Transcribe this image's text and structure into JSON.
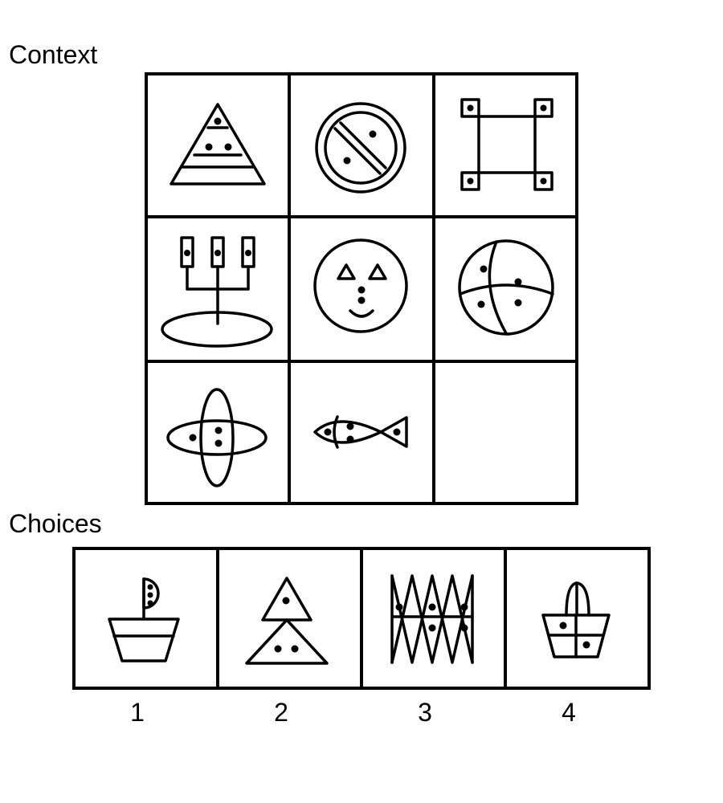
{
  "context": {
    "label": "Context",
    "cells": [
      {
        "icon": "layered-triangle-icon"
      },
      {
        "icon": "prohibition-circle-icon"
      },
      {
        "icon": "square-frame-icon"
      },
      {
        "icon": "candelabra-icon"
      },
      {
        "icon": "face-icon"
      },
      {
        "icon": "divided-ball-icon"
      },
      {
        "icon": "crossed-ellipses-icon"
      },
      {
        "icon": "fish-icon"
      },
      {
        "icon": "empty"
      }
    ]
  },
  "choices": {
    "label": "Choices",
    "items": [
      {
        "number": "1",
        "icon": "boat-icon"
      },
      {
        "number": "2",
        "icon": "stacked-triangles-icon"
      },
      {
        "number": "3",
        "icon": "zigzag-triangles-icon"
      },
      {
        "number": "4",
        "icon": "basket-icon"
      }
    ]
  }
}
